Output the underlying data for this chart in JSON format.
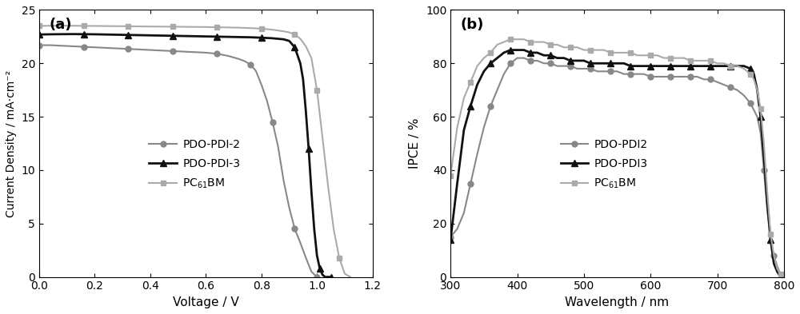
{
  "panel_a": {
    "title": "(a)",
    "xlabel": "Voltage / V",
    "ylabel": "Current Density / mA·cm⁻²",
    "xlim": [
      0,
      1.2
    ],
    "ylim": [
      0,
      25
    ],
    "xticks": [
      0.0,
      0.2,
      0.4,
      0.6,
      0.8,
      1.0,
      1.2
    ],
    "yticks": [
      0,
      5,
      10,
      15,
      20,
      25
    ],
    "PDO_PDI2": {
      "x": [
        0.0,
        0.04,
        0.08,
        0.12,
        0.16,
        0.2,
        0.24,
        0.28,
        0.32,
        0.36,
        0.4,
        0.44,
        0.48,
        0.52,
        0.56,
        0.6,
        0.64,
        0.68,
        0.72,
        0.74,
        0.76,
        0.78,
        0.8,
        0.82,
        0.84,
        0.86,
        0.88,
        0.9,
        0.92,
        0.94,
        0.96,
        0.98,
        1.0
      ],
      "y": [
        21.7,
        21.7,
        21.65,
        21.6,
        21.55,
        21.5,
        21.45,
        21.4,
        21.35,
        21.3,
        21.25,
        21.2,
        21.15,
        21.1,
        21.05,
        21.0,
        20.9,
        20.7,
        20.4,
        20.2,
        19.9,
        19.3,
        18.0,
        16.5,
        14.5,
        12.2,
        9.0,
        6.5,
        4.5,
        3.2,
        1.8,
        0.5,
        0.0
      ],
      "color": "#888888",
      "marker": "o",
      "markersize": 5,
      "linewidth": 1.5,
      "markevery": 4
    },
    "PDO_PDI3": {
      "x": [
        0.0,
        0.04,
        0.08,
        0.12,
        0.16,
        0.2,
        0.24,
        0.28,
        0.32,
        0.36,
        0.4,
        0.44,
        0.48,
        0.52,
        0.56,
        0.6,
        0.64,
        0.68,
        0.72,
        0.76,
        0.8,
        0.84,
        0.88,
        0.9,
        0.92,
        0.94,
        0.95,
        0.96,
        0.97,
        0.98,
        0.99,
        1.0,
        1.01,
        1.02,
        1.03,
        1.04,
        1.05
      ],
      "y": [
        22.7,
        22.72,
        22.73,
        22.74,
        22.73,
        22.72,
        22.7,
        22.68,
        22.66,
        22.64,
        22.62,
        22.6,
        22.58,
        22.56,
        22.54,
        22.52,
        22.5,
        22.48,
        22.46,
        22.44,
        22.4,
        22.35,
        22.25,
        22.1,
        21.5,
        20.0,
        18.5,
        15.5,
        12.0,
        8.0,
        4.5,
        2.0,
        0.8,
        0.2,
        0.0,
        0.0,
        0.0
      ],
      "color": "#111111",
      "marker": "^",
      "markersize": 6,
      "linewidth": 2.0,
      "markevery": 4
    },
    "PC61BM": {
      "x": [
        0.0,
        0.04,
        0.08,
        0.12,
        0.16,
        0.2,
        0.24,
        0.28,
        0.32,
        0.36,
        0.4,
        0.44,
        0.48,
        0.52,
        0.56,
        0.6,
        0.64,
        0.68,
        0.72,
        0.76,
        0.8,
        0.84,
        0.88,
        0.9,
        0.92,
        0.94,
        0.96,
        0.98,
        1.0,
        1.02,
        1.04,
        1.06,
        1.08,
        1.1,
        1.12
      ],
      "y": [
        23.5,
        23.52,
        23.53,
        23.52,
        23.51,
        23.5,
        23.49,
        23.48,
        23.47,
        23.46,
        23.45,
        23.44,
        23.43,
        23.42,
        23.41,
        23.4,
        23.38,
        23.36,
        23.34,
        23.3,
        23.25,
        23.15,
        23.0,
        22.9,
        22.7,
        22.3,
        21.6,
        20.5,
        17.5,
        13.0,
        8.5,
        4.5,
        1.8,
        0.3,
        0.0
      ],
      "color": "#aaaaaa",
      "marker": "s",
      "markersize": 5,
      "linewidth": 1.5,
      "markevery": 4
    },
    "legend_labels": [
      "PDO-PDI-2",
      "PDO-PDI-3",
      "PC$_{61}$BM"
    ]
  },
  "panel_b": {
    "title": "(b)",
    "xlabel": "Wavelength / nm",
    "ylabel": "IPCE / %",
    "xlim": [
      300,
      800
    ],
    "ylim": [
      0,
      100
    ],
    "xticks": [
      300,
      400,
      500,
      600,
      700,
      800
    ],
    "yticks": [
      0,
      20,
      40,
      60,
      80,
      100
    ],
    "PDO_PDI2": {
      "x": [
        300,
        310,
        320,
        330,
        340,
        350,
        360,
        370,
        380,
        390,
        400,
        410,
        420,
        430,
        440,
        450,
        460,
        470,
        480,
        490,
        500,
        510,
        520,
        530,
        540,
        550,
        560,
        570,
        580,
        590,
        600,
        610,
        620,
        630,
        640,
        650,
        660,
        670,
        680,
        690,
        700,
        710,
        720,
        730,
        740,
        750,
        760,
        765,
        770,
        775,
        780,
        785,
        790,
        795,
        800
      ],
      "y": [
        15,
        18,
        24,
        35,
        46,
        56,
        64,
        70,
        76,
        80,
        82,
        82,
        81,
        81,
        80,
        80,
        79,
        79,
        79,
        78,
        78,
        78,
        77,
        77,
        77,
        77,
        76,
        76,
        76,
        76,
        75,
        75,
        75,
        75,
        75,
        75,
        75,
        75,
        74,
        74,
        73,
        72,
        71,
        70,
        68,
        65,
        60,
        54,
        40,
        25,
        14,
        8,
        4,
        1,
        0
      ],
      "color": "#888888",
      "marker": "o",
      "markersize": 5,
      "linewidth": 1.5,
      "markevery": 3
    },
    "PDO_PDI3": {
      "x": [
        300,
        310,
        320,
        330,
        340,
        350,
        360,
        370,
        380,
        390,
        400,
        410,
        420,
        430,
        440,
        450,
        460,
        470,
        480,
        490,
        500,
        510,
        520,
        530,
        540,
        550,
        560,
        570,
        580,
        590,
        600,
        610,
        620,
        630,
        640,
        650,
        660,
        670,
        680,
        690,
        700,
        710,
        720,
        730,
        740,
        750,
        755,
        760,
        765,
        770,
        775,
        780,
        785,
        790,
        795,
        800
      ],
      "y": [
        14,
        35,
        55,
        64,
        72,
        77,
        80,
        82,
        84,
        85,
        85,
        85,
        84,
        84,
        83,
        83,
        82,
        82,
        81,
        81,
        81,
        80,
        80,
        80,
        80,
        80,
        80,
        79,
        79,
        79,
        79,
        79,
        79,
        79,
        79,
        79,
        79,
        79,
        79,
        79,
        79,
        79,
        79,
        79,
        79,
        78,
        76,
        70,
        60,
        45,
        28,
        14,
        5,
        2,
        0,
        0
      ],
      "color": "#111111",
      "marker": "^",
      "markersize": 6,
      "linewidth": 2.0,
      "markevery": 3
    },
    "PC61BM": {
      "x": [
        300,
        310,
        320,
        330,
        340,
        350,
        360,
        370,
        380,
        390,
        400,
        410,
        420,
        430,
        440,
        450,
        460,
        470,
        480,
        490,
        500,
        510,
        520,
        530,
        540,
        550,
        560,
        570,
        580,
        590,
        600,
        610,
        620,
        630,
        640,
        650,
        660,
        670,
        680,
        690,
        700,
        710,
        720,
        730,
        740,
        750,
        755,
        760,
        765,
        770,
        775,
        780,
        785,
        790,
        795,
        800
      ],
      "y": [
        38,
        56,
        67,
        73,
        79,
        82,
        84,
        87,
        88,
        89,
        89,
        89,
        88,
        88,
        88,
        87,
        87,
        86,
        86,
        86,
        85,
        85,
        85,
        85,
        84,
        84,
        84,
        84,
        83,
        83,
        83,
        83,
        82,
        82,
        82,
        82,
        81,
        81,
        81,
        81,
        80,
        80,
        79,
        79,
        78,
        76,
        74,
        70,
        63,
        50,
        32,
        16,
        8,
        3,
        1,
        0
      ],
      "color": "#aaaaaa",
      "marker": "s",
      "markersize": 5,
      "linewidth": 1.5,
      "markevery": 3
    },
    "legend_labels": [
      "PDO-PDI2",
      "PDO-PDI3",
      "PC$_{61}$BM"
    ]
  }
}
